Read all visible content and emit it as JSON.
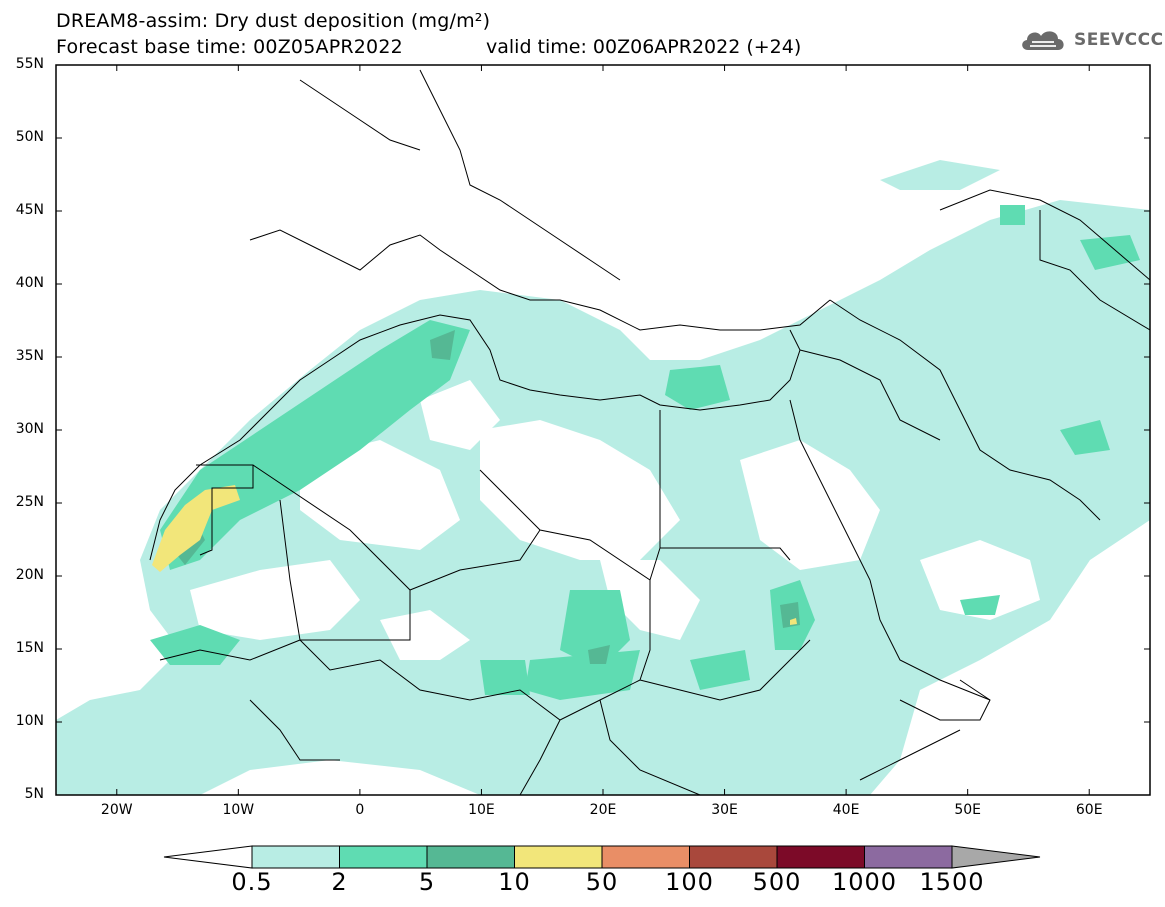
{
  "header": {
    "title_line1": "DREAM8-assim: Dry dust deposition (mg/m²)",
    "title_line2": "Forecast base time: 00Z05APR2022",
    "valid_time": "valid time: 00Z06APR2022 (+24)",
    "logo_text": "SEEVCCC"
  },
  "map": {
    "lat_labels": [
      "55N",
      "50N",
      "45N",
      "40N",
      "35N",
      "30N",
      "25N",
      "20N",
      "15N",
      "10N",
      "5N"
    ],
    "lon_labels": [
      "20W",
      "10W",
      "0",
      "10E",
      "20E",
      "30E",
      "40E",
      "50E",
      "60E"
    ],
    "lon_range": [
      -25,
      65
    ],
    "lat_range": [
      5,
      55
    ]
  },
  "colorbar": {
    "labels": [
      "0.5",
      "2",
      "5",
      "10",
      "50",
      "100",
      "500",
      "1000",
      "1500"
    ],
    "colors": [
      "#b8ede4",
      "#5fdcb2",
      "#55b894",
      "#f2e67a",
      "#e98e66",
      "#a9483c",
      "#7c0a28",
      "#8c6aa0"
    ],
    "under_color": "#ffffff",
    "over_color": "#a8a8a8"
  }
}
